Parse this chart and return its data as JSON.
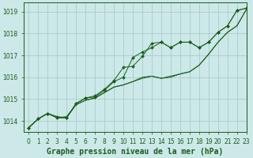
{
  "xlabel": "Graphe pression niveau de la mer (hPa)",
  "xlim": [
    -0.5,
    23
  ],
  "ylim": [
    1013.5,
    1019.4
  ],
  "yticks": [
    1014,
    1015,
    1016,
    1017,
    1018,
    1019
  ],
  "xticks": [
    0,
    1,
    2,
    3,
    4,
    5,
    6,
    7,
    8,
    9,
    10,
    11,
    12,
    13,
    14,
    15,
    16,
    17,
    18,
    19,
    20,
    21,
    22,
    23
  ],
  "bg_color": "#cce8e8",
  "grid_color": "#aacccc",
  "line_color": "#1a5c1a",
  "series": [
    [
      1013.7,
      1014.1,
      1014.35,
      1014.2,
      1014.15,
      1014.8,
      1015.05,
      1015.15,
      1015.45,
      1015.85,
      1016.45,
      1016.5,
      1016.95,
      1017.55,
      1017.6,
      1017.35,
      1017.6,
      1017.6,
      1017.35,
      1017.6,
      1018.05,
      1018.35,
      1019.05,
      1019.15
    ],
    [
      1013.7,
      1014.1,
      1014.35,
      1014.15,
      1014.15,
      1014.8,
      1015.05,
      1015.1,
      1015.4,
      1015.8,
      1016.0,
      1016.9,
      1017.15,
      1017.35,
      1017.6,
      1017.35,
      1017.6,
      1017.6,
      1017.35,
      1017.6,
      1018.05,
      1018.35,
      1019.05,
      1019.15
    ],
    [
      1013.7,
      1014.1,
      1014.35,
      1014.15,
      1014.15,
      1014.75,
      1014.95,
      1015.05,
      1015.3,
      1015.55,
      1015.65,
      1015.8,
      1016.0,
      1016.05,
      1015.95,
      1016.05,
      1016.15,
      1016.25,
      1016.55,
      1017.05,
      1017.6,
      1018.05,
      1018.35,
      1019.1
    ],
    [
      1013.7,
      1014.1,
      1014.35,
      1014.15,
      1014.2,
      1014.75,
      1014.95,
      1015.05,
      1015.3,
      1015.55,
      1015.65,
      1015.8,
      1015.95,
      1016.05,
      1015.95,
      1016.0,
      1016.15,
      1016.25,
      1016.55,
      1017.05,
      1017.6,
      1018.05,
      1018.35,
      1019.1
    ]
  ],
  "font_color": "#1a5c1a",
  "font_size_label": 7,
  "font_size_tick": 5.5
}
